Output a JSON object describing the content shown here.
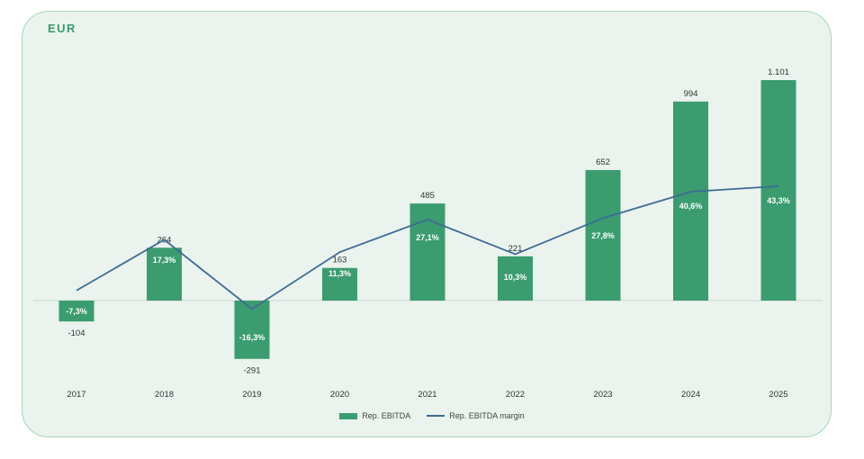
{
  "currency_label": "EUR",
  "colors": {
    "bar": "#3b9c6f",
    "line": "#3d6b96",
    "panel_bg": "#eaf3ed",
    "panel_border": "#a6d8b9"
  },
  "chart_data": {
    "type": "bar",
    "categories": [
      "2017",
      "2018",
      "2019",
      "2020",
      "2021",
      "2022",
      "2023",
      "2024",
      "2025"
    ],
    "series": [
      {
        "name": "Rep. EBITDA",
        "type": "bar",
        "values": [
          -104,
          264,
          -291,
          163,
          485,
          221,
          652,
          994,
          1101
        ],
        "labels": [
          "-104",
          "264",
          "-291",
          "163",
          "485",
          "221",
          "652",
          "994",
          "1.101"
        ]
      },
      {
        "name": "Rep. EBITDA margin",
        "type": "line",
        "values": [
          -7.3,
          17.3,
          -16.3,
          11.3,
          27.1,
          10.3,
          27.8,
          40.6,
          43.3
        ],
        "labels": [
          "-7,3%",
          "17,3%",
          "-16,3%",
          "11,3%",
          "27,1%",
          "10,3%",
          "27,8%",
          "40,6%",
          "43,3%"
        ]
      }
    ],
    "legend_position": "bottom",
    "grid": false
  }
}
